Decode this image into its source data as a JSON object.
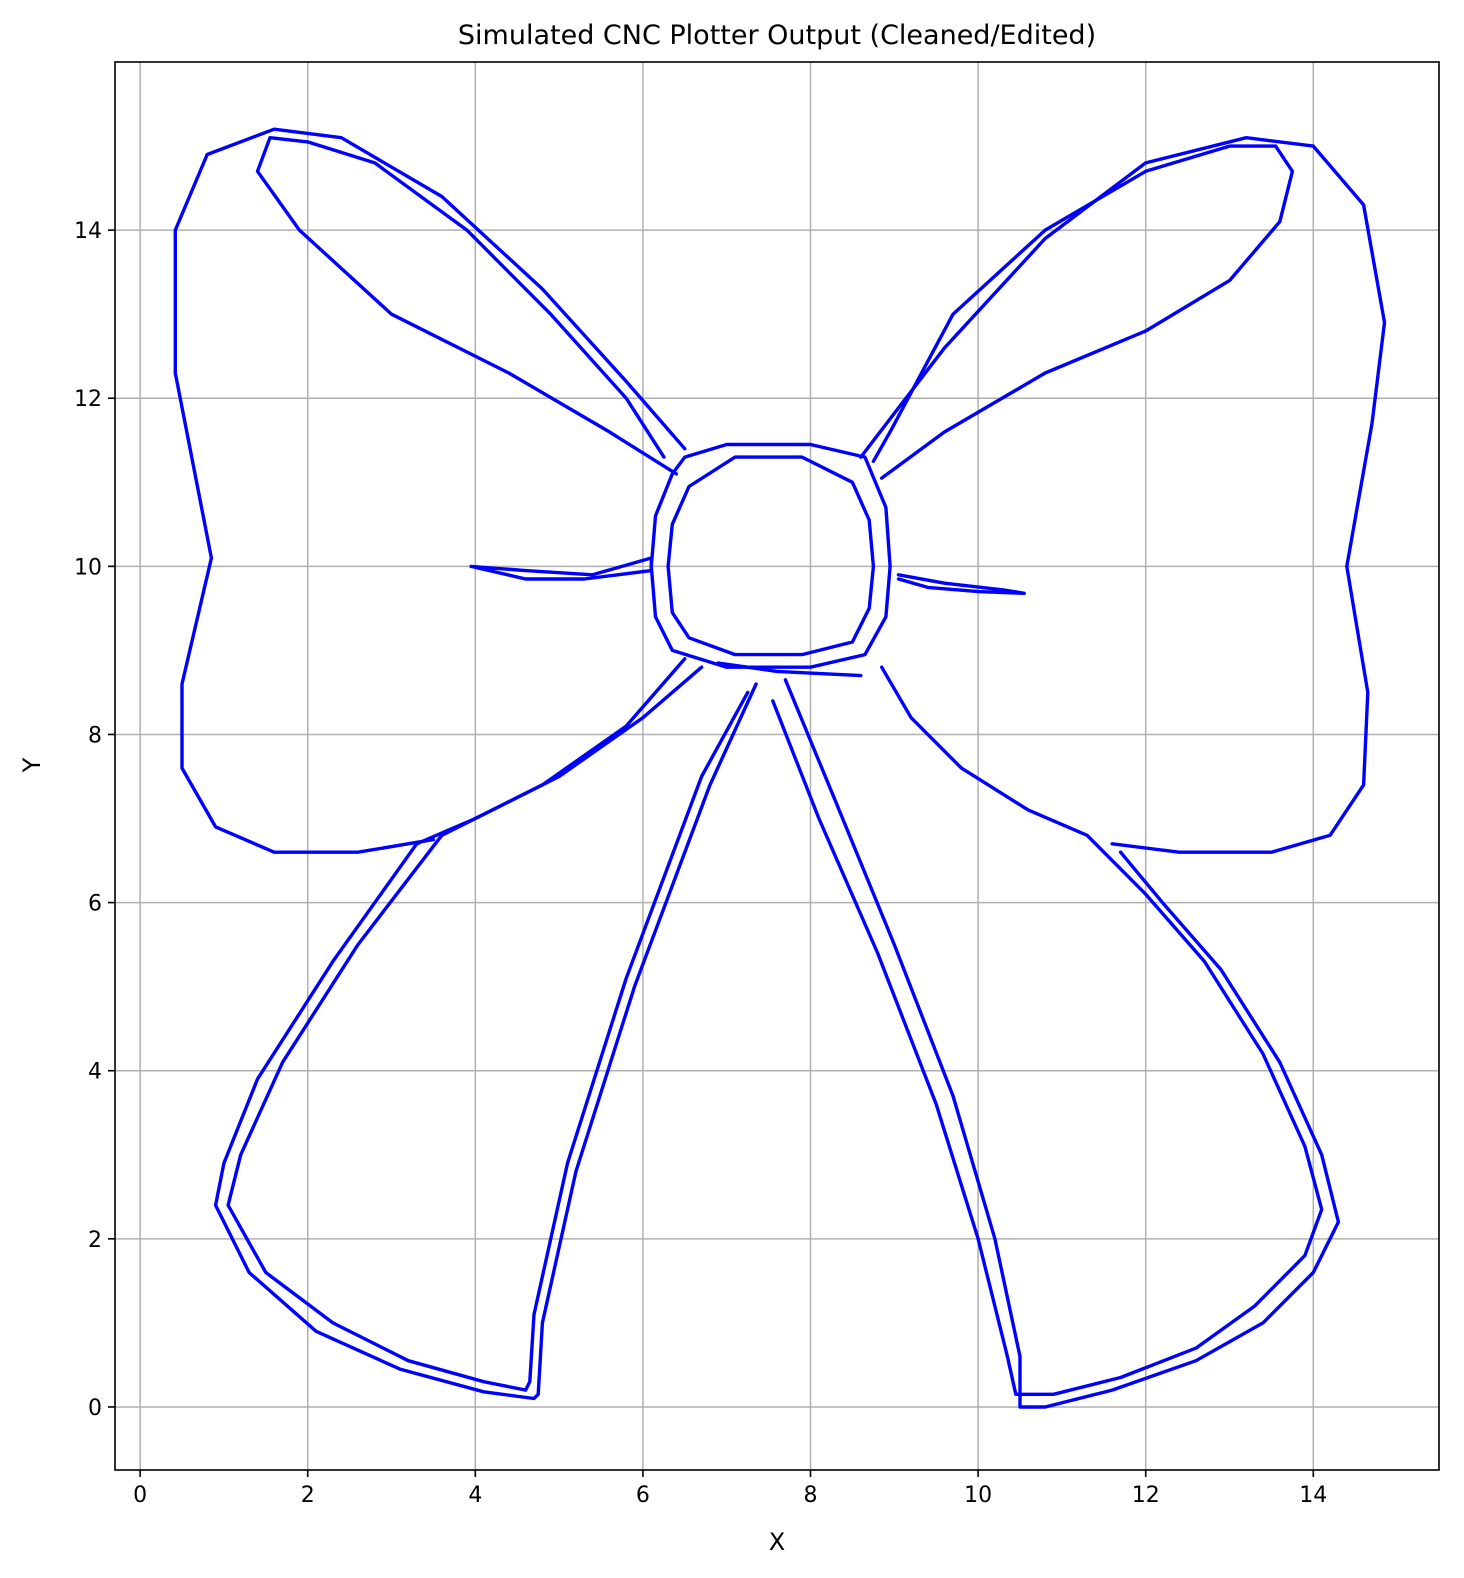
{
  "chart_data": {
    "type": "line",
    "title": "Simulated CNC Plotter Output (Cleaned/Edited)",
    "xlabel": "X",
    "ylabel": "Y",
    "xlim": [
      -0.3,
      15.5
    ],
    "ylim": [
      -0.75,
      16.0
    ],
    "xticks": [
      0,
      2,
      4,
      6,
      8,
      10,
      12,
      14
    ],
    "yticks": [
      0,
      2,
      4,
      6,
      8,
      10,
      12,
      14
    ],
    "grid": true,
    "line_color": "#0000ff",
    "paths": [
      {
        "name": "left-loop-outer",
        "points": [
          [
            6.5,
            11.4
          ],
          [
            5.8,
            12.2
          ],
          [
            4.8,
            13.3
          ],
          [
            3.6,
            14.4
          ],
          [
            2.4,
            15.1
          ],
          [
            1.6,
            15.2
          ],
          [
            0.8,
            14.9
          ],
          [
            0.42,
            14.0
          ],
          [
            0.42,
            12.3
          ],
          [
            0.85,
            10.1
          ],
          [
            0.5,
            8.6
          ],
          [
            0.5,
            7.6
          ],
          [
            0.9,
            6.9
          ],
          [
            1.6,
            6.6
          ],
          [
            2.6,
            6.6
          ],
          [
            3.5,
            6.75
          ]
        ]
      },
      {
        "name": "left-loop-inner",
        "points": [
          [
            6.4,
            11.1
          ],
          [
            5.6,
            11.6
          ],
          [
            4.4,
            12.3
          ],
          [
            3.0,
            13.0
          ],
          [
            1.9,
            14.0
          ],
          [
            1.4,
            14.7
          ],
          [
            1.55,
            15.1
          ],
          [
            2.0,
            15.05
          ],
          [
            2.8,
            14.8
          ],
          [
            3.9,
            14.0
          ],
          [
            4.9,
            13.0
          ],
          [
            5.8,
            12.0
          ],
          [
            6.25,
            11.3
          ]
        ]
      },
      {
        "name": "right-loop-outer",
        "points": [
          [
            8.6,
            11.3
          ],
          [
            9.6,
            12.6
          ],
          [
            10.8,
            13.9
          ],
          [
            12.0,
            14.8
          ],
          [
            13.2,
            15.1
          ],
          [
            14.0,
            15.0
          ],
          [
            14.6,
            14.3
          ],
          [
            14.85,
            12.9
          ],
          [
            14.7,
            11.7
          ],
          [
            14.4,
            10.0
          ],
          [
            14.65,
            8.5
          ],
          [
            14.6,
            7.4
          ],
          [
            14.2,
            6.8
          ],
          [
            13.5,
            6.6
          ],
          [
            12.4,
            6.6
          ],
          [
            11.6,
            6.7
          ]
        ]
      },
      {
        "name": "right-loop-inner",
        "points": [
          [
            8.85,
            11.05
          ],
          [
            9.6,
            11.6
          ],
          [
            10.8,
            12.3
          ],
          [
            12.0,
            12.8
          ],
          [
            13.0,
            13.4
          ],
          [
            13.6,
            14.1
          ],
          [
            13.75,
            14.7
          ],
          [
            13.55,
            15.0
          ],
          [
            13.0,
            15.0
          ],
          [
            12.0,
            14.7
          ],
          [
            10.8,
            14.0
          ],
          [
            9.7,
            13.0
          ],
          [
            8.95,
            11.6
          ],
          [
            8.75,
            11.25
          ]
        ]
      },
      {
        "name": "knot-outer",
        "points": [
          [
            6.35,
            11.1
          ],
          [
            6.15,
            10.6
          ],
          [
            6.1,
            10.0
          ],
          [
            6.15,
            9.4
          ],
          [
            6.35,
            9.0
          ],
          [
            7.0,
            8.8
          ],
          [
            8.0,
            8.8
          ],
          [
            8.65,
            8.95
          ],
          [
            8.9,
            9.4
          ],
          [
            8.95,
            10.0
          ],
          [
            8.9,
            10.7
          ],
          [
            8.65,
            11.3
          ],
          [
            8.0,
            11.45
          ],
          [
            7.0,
            11.45
          ],
          [
            6.5,
            11.3
          ],
          [
            6.35,
            11.1
          ]
        ]
      },
      {
        "name": "knot-inner",
        "points": [
          [
            6.55,
            10.95
          ],
          [
            6.35,
            10.5
          ],
          [
            6.3,
            10.0
          ],
          [
            6.35,
            9.45
          ],
          [
            6.55,
            9.15
          ],
          [
            7.1,
            8.95
          ],
          [
            7.9,
            8.95
          ],
          [
            8.5,
            9.1
          ],
          [
            8.7,
            9.5
          ],
          [
            8.75,
            10.0
          ],
          [
            8.7,
            10.55
          ],
          [
            8.5,
            11.0
          ],
          [
            7.9,
            11.3
          ],
          [
            7.1,
            11.3
          ],
          [
            6.55,
            10.95
          ]
        ]
      },
      {
        "name": "left-tail-outer",
        "points": [
          [
            6.5,
            8.9
          ],
          [
            5.8,
            8.1
          ],
          [
            4.8,
            7.4
          ],
          [
            4.0,
            7.0
          ],
          [
            3.3,
            6.7
          ],
          [
            2.3,
            5.3
          ],
          [
            1.4,
            3.9
          ],
          [
            1.0,
            2.9
          ],
          [
            0.9,
            2.4
          ],
          [
            1.3,
            1.6
          ],
          [
            2.1,
            0.9
          ],
          [
            3.1,
            0.45
          ],
          [
            4.1,
            0.18
          ],
          [
            4.7,
            0.1
          ],
          [
            4.75,
            0.15
          ],
          [
            4.8,
            1.0
          ],
          [
            5.2,
            2.8
          ],
          [
            5.9,
            5.0
          ],
          [
            6.8,
            7.4
          ],
          [
            7.35,
            8.6
          ]
        ]
      },
      {
        "name": "left-tail-inner",
        "points": [
          [
            6.7,
            8.8
          ],
          [
            6.0,
            8.2
          ],
          [
            5.0,
            7.5
          ],
          [
            4.2,
            7.1
          ],
          [
            3.6,
            6.8
          ],
          [
            2.6,
            5.5
          ],
          [
            1.7,
            4.1
          ],
          [
            1.2,
            3.0
          ],
          [
            1.05,
            2.4
          ],
          [
            1.5,
            1.6
          ],
          [
            2.3,
            1.0
          ],
          [
            3.2,
            0.55
          ],
          [
            4.1,
            0.3
          ],
          [
            4.6,
            0.2
          ],
          [
            4.65,
            0.3
          ],
          [
            4.7,
            1.1
          ],
          [
            5.1,
            2.9
          ],
          [
            5.8,
            5.1
          ],
          [
            6.7,
            7.5
          ],
          [
            7.25,
            8.5
          ]
        ]
      },
      {
        "name": "right-tail-outer",
        "points": [
          [
            7.7,
            8.65
          ],
          [
            8.3,
            7.2
          ],
          [
            9.0,
            5.5
          ],
          [
            9.7,
            3.7
          ],
          [
            10.2,
            2.0
          ],
          [
            10.5,
            0.6
          ],
          [
            10.5,
            0.0
          ],
          [
            10.8,
            0.0
          ],
          [
            11.6,
            0.2
          ],
          [
            12.6,
            0.55
          ],
          [
            13.4,
            1.0
          ],
          [
            14.0,
            1.6
          ],
          [
            14.3,
            2.2
          ],
          [
            14.1,
            3.0
          ],
          [
            13.6,
            4.1
          ],
          [
            12.9,
            5.2
          ],
          [
            12.2,
            6.0
          ],
          [
            11.7,
            6.6
          ]
        ]
      },
      {
        "name": "right-tail-inner",
        "points": [
          [
            7.55,
            8.4
          ],
          [
            8.1,
            7.0
          ],
          [
            8.8,
            5.4
          ],
          [
            9.5,
            3.6
          ],
          [
            10.0,
            2.0
          ],
          [
            10.35,
            0.6
          ],
          [
            10.45,
            0.15
          ],
          [
            10.9,
            0.15
          ],
          [
            11.7,
            0.35
          ],
          [
            12.6,
            0.7
          ],
          [
            13.3,
            1.2
          ],
          [
            13.9,
            1.8
          ],
          [
            14.1,
            2.35
          ],
          [
            13.9,
            3.1
          ],
          [
            13.4,
            4.2
          ],
          [
            12.7,
            5.3
          ],
          [
            12.0,
            6.1
          ],
          [
            11.3,
            6.8
          ],
          [
            10.6,
            7.1
          ],
          [
            9.8,
            7.6
          ],
          [
            9.2,
            8.2
          ],
          [
            8.85,
            8.8
          ]
        ]
      },
      {
        "name": "center-seam",
        "points": [
          [
            6.9,
            8.85
          ],
          [
            7.6,
            8.75
          ],
          [
            8.6,
            8.7
          ]
        ]
      },
      {
        "name": "left-tie-strand",
        "points": [
          [
            3.95,
            10.0
          ],
          [
            4.6,
            9.95
          ],
          [
            5.4,
            9.9
          ],
          [
            6.1,
            10.1
          ],
          [
            6.1,
            9.95
          ],
          [
            5.3,
            9.85
          ],
          [
            4.6,
            9.85
          ],
          [
            3.95,
            10.0
          ]
        ]
      },
      {
        "name": "right-tie-strand",
        "points": [
          [
            9.05,
            9.9
          ],
          [
            9.6,
            9.8
          ],
          [
            10.3,
            9.72
          ],
          [
            10.55,
            9.68
          ],
          [
            10.0,
            9.7
          ],
          [
            9.4,
            9.75
          ],
          [
            9.05,
            9.85
          ]
        ]
      }
    ]
  }
}
